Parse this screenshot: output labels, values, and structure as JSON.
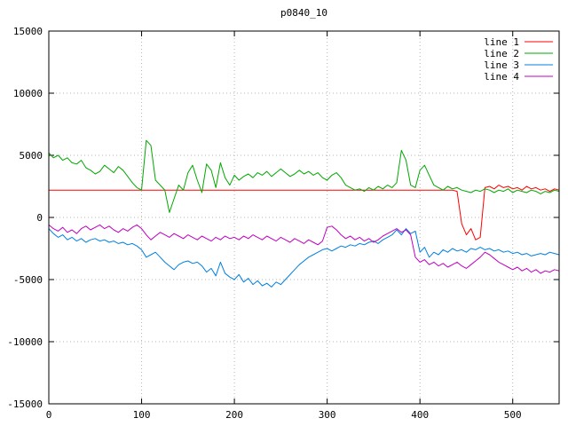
{
  "title": "p0840_10",
  "colors": {
    "background": "#ffffff",
    "border": "#000000",
    "grid": "#b4b4b4",
    "text": "#000000"
  },
  "chart_data": {
    "type": "line",
    "title": "p0840_10",
    "xlabel": "",
    "ylabel": "",
    "xlim": [
      0,
      550
    ],
    "ylim": [
      -15000,
      15000
    ],
    "xticks": [
      0,
      100,
      200,
      300,
      400,
      500
    ],
    "yticks": [
      -15000,
      -10000,
      -5000,
      0,
      5000,
      10000,
      15000
    ],
    "grid": true,
    "legend_position": "top-right",
    "x_start": 0,
    "x_step": 5,
    "series": [
      {
        "name": "line 1",
        "color": "#ff0000",
        "values": [
          2200,
          2200,
          2200,
          2200,
          2200,
          2200,
          2200,
          2200,
          2200,
          2200,
          2200,
          2200,
          2200,
          2200,
          2200,
          2200,
          2200,
          2200,
          2200,
          2200,
          2200,
          2200,
          2200,
          2200,
          2200,
          2200,
          2200,
          2200,
          2200,
          2200,
          2200,
          2200,
          2200,
          2200,
          2200,
          2200,
          2200,
          2200,
          2200,
          2200,
          2200,
          2200,
          2200,
          2200,
          2200,
          2200,
          2200,
          2200,
          2200,
          2200,
          2200,
          2200,
          2200,
          2200,
          2200,
          2200,
          2200,
          2200,
          2200,
          2200,
          2200,
          2200,
          2200,
          2200,
          2200,
          2200,
          2200,
          2200,
          2200,
          2200,
          2200,
          2200,
          2200,
          2200,
          2200,
          2200,
          2200,
          2200,
          2200,
          2200,
          2200,
          2200,
          2200,
          2200,
          2200,
          2200,
          2200,
          2200,
          2100,
          -500,
          -1400,
          -900,
          -1800,
          -1600,
          2400,
          2500,
          2300,
          2600,
          2400,
          2500,
          2300,
          2400,
          2200,
          2500,
          2300,
          2400,
          2200,
          2300,
          2100,
          2300,
          2200
        ]
      },
      {
        "name": "line 2",
        "color": "#00a800",
        "values": [
          5200,
          4800,
          5000,
          4600,
          4800,
          4400,
          4300,
          4600,
          4000,
          3800,
          3500,
          3700,
          4200,
          3900,
          3600,
          4100,
          3800,
          3300,
          2800,
          2400,
          2200,
          6200,
          5800,
          3000,
          2600,
          2200,
          400,
          1500,
          2600,
          2200,
          3600,
          4200,
          3000,
          2000,
          4300,
          3800,
          2400,
          4400,
          3200,
          2600,
          3400,
          3000,
          3300,
          3500,
          3200,
          3600,
          3400,
          3700,
          3300,
          3600,
          3900,
          3600,
          3300,
          3500,
          3800,
          3500,
          3700,
          3400,
          3600,
          3200,
          3000,
          3400,
          3600,
          3200,
          2600,
          2400,
          2200,
          2300,
          2100,
          2400,
          2200,
          2500,
          2300,
          2600,
          2400,
          2800,
          5400,
          4600,
          2600,
          2400,
          3800,
          4200,
          3400,
          2600,
          2400,
          2200,
          2500,
          2300,
          2400,
          2200,
          2100,
          2000,
          2200,
          2100,
          2300,
          2200,
          2000,
          2200,
          2100,
          2300,
          2000,
          2200,
          2100,
          2000,
          2200,
          2100,
          1900,
          2100,
          2000,
          2200,
          2100
        ]
      },
      {
        "name": "line 3",
        "color": "#0080e0",
        "values": [
          -900,
          -1300,
          -1600,
          -1400,
          -1800,
          -1600,
          -1900,
          -1700,
          -2000,
          -1800,
          -1700,
          -1900,
          -1800,
          -2000,
          -1900,
          -2100,
          -2000,
          -2200,
          -2100,
          -2300,
          -2600,
          -3200,
          -3000,
          -2800,
          -3200,
          -3600,
          -3900,
          -4200,
          -3800,
          -3600,
          -3500,
          -3700,
          -3600,
          -3900,
          -4400,
          -4100,
          -4700,
          -3600,
          -4500,
          -4800,
          -5000,
          -4600,
          -5200,
          -4900,
          -5400,
          -5100,
          -5500,
          -5300,
          -5600,
          -5200,
          -5400,
          -5000,
          -4600,
          -4200,
          -3800,
          -3500,
          -3200,
          -3000,
          -2800,
          -2600,
          -2500,
          -2700,
          -2500,
          -2300,
          -2400,
          -2200,
          -2300,
          -2100,
          -2200,
          -2000,
          -1900,
          -2100,
          -1800,
          -1600,
          -1400,
          -1000,
          -1400,
          -900,
          -1300,
          -1100,
          -2800,
          -2400,
          -3200,
          -2800,
          -3000,
          -2600,
          -2800,
          -2500,
          -2700,
          -2600,
          -2800,
          -2500,
          -2600,
          -2400,
          -2600,
          -2500,
          -2700,
          -2600,
          -2800,
          -2700,
          -2900,
          -2800,
          -3000,
          -2900,
          -3100,
          -3000,
          -2900,
          -3000,
          -2800,
          -2900,
          -3000
        ]
      },
      {
        "name": "line 4",
        "color": "#c000c0",
        "values": [
          -600,
          -900,
          -1100,
          -800,
          -1200,
          -1000,
          -1300,
          -900,
          -700,
          -1000,
          -800,
          -600,
          -900,
          -700,
          -1000,
          -1200,
          -900,
          -1100,
          -800,
          -600,
          -900,
          -1400,
          -1800,
          -1500,
          -1200,
          -1400,
          -1600,
          -1300,
          -1500,
          -1700,
          -1400,
          -1600,
          -1800,
          -1500,
          -1700,
          -1900,
          -1600,
          -1800,
          -1500,
          -1700,
          -1600,
          -1800,
          -1500,
          -1700,
          -1400,
          -1600,
          -1800,
          -1500,
          -1700,
          -1900,
          -1600,
          -1800,
          -2000,
          -1700,
          -1900,
          -2100,
          -1800,
          -2000,
          -2200,
          -1900,
          -800,
          -700,
          -1000,
          -1400,
          -1700,
          -1500,
          -1800,
          -1600,
          -1900,
          -1700,
          -2000,
          -1800,
          -1500,
          -1300,
          -1100,
          -900,
          -1200,
          -1000,
          -1400,
          -3200,
          -3600,
          -3400,
          -3800,
          -3600,
          -3900,
          -3700,
          -4000,
          -3800,
          -3600,
          -3900,
          -4100,
          -3800,
          -3500,
          -3200,
          -2800,
          -3000,
          -3300,
          -3600,
          -3800,
          -4000,
          -4200,
          -4000,
          -4300,
          -4100,
          -4400,
          -4200,
          -4500,
          -4300,
          -4400,
          -4200,
          -4300
        ]
      }
    ]
  }
}
